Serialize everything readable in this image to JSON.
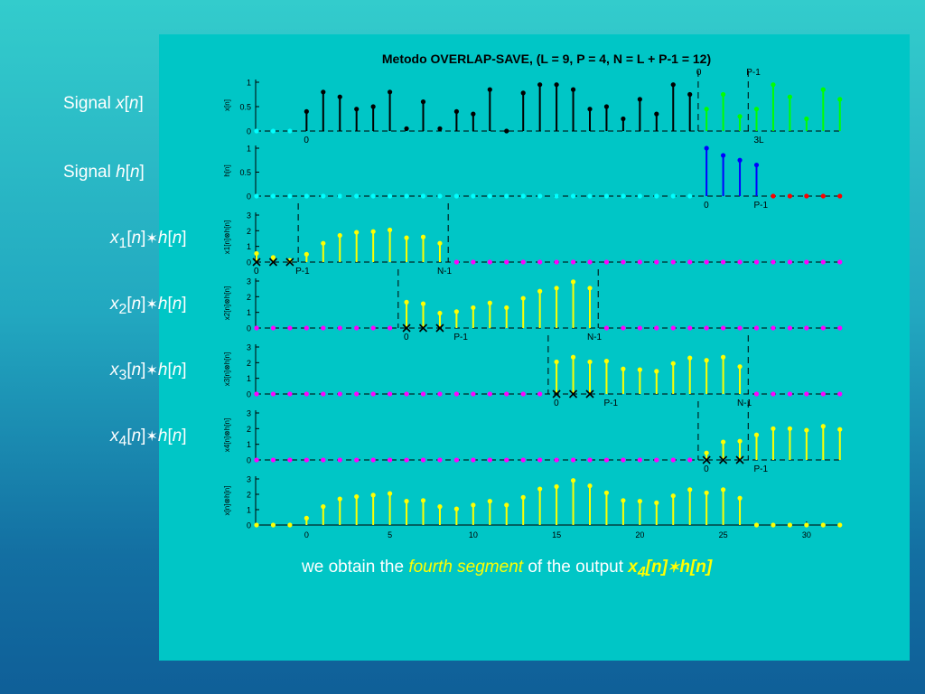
{
  "side_labels": [
    {
      "text": "Signal x[n]"
    },
    {
      "text": "Signal h[n]"
    },
    {
      "text": "x1[n]*h[n]"
    },
    {
      "text": "x2[n]*h[n]"
    },
    {
      "text": "x3[n]*h[n]"
    },
    {
      "text": "x4[n]*h[n]"
    }
  ],
  "caption": {
    "lead": "we obtain the ",
    "em": "fourth segment",
    "mid": " of the output ",
    "bold": "x4[n]*h[n]"
  },
  "colors": {
    "background_top": "#33CCCC",
    "background_bottom": "#0F5F98",
    "panel": "#00C6C6",
    "highlight_yellow": "#FFFF00",
    "stem_black": "#000000",
    "stem_green": "#00FF00",
    "stem_blue": "#0000FF",
    "zero_red": "#FF0000",
    "zero_cyan": "#00FFFF",
    "zero_magenta": "#FF00FF",
    "stem_yellow": "#FFFF00"
  },
  "chart_data": {
    "type": "stem",
    "title": "Metodo OVERLAP-SAVE, (L = 9, P = 4, N = L + P-1 = 12)",
    "x_axis": {
      "range": [
        -3,
        32
      ],
      "ticks": [
        0,
        5,
        10,
        15,
        20,
        25,
        30
      ]
    },
    "panels": [
      {
        "id": "x",
        "ylabel": "x[n]",
        "ylim": [
          0,
          1
        ],
        "yticks": [
          "0",
          "0.5",
          "1"
        ],
        "segments": [
          {
            "role": "zero",
            "color": "#00FFFF",
            "x": [
              -3,
              -2,
              -1
            ],
            "y": [
              0,
              0,
              0
            ]
          },
          {
            "role": "signal",
            "color": "#000000",
            "x": [
              0,
              1,
              2,
              3,
              4,
              5,
              6,
              7,
              8,
              9,
              10,
              11,
              12,
              13,
              14,
              15,
              16,
              17,
              18,
              19,
              20,
              21,
              22,
              23
            ],
            "y": [
              0.4,
              0.8,
              0.7,
              0.45,
              0.5,
              0.8,
              0.05,
              0.6,
              0.05,
              0.4,
              0.35,
              0.85,
              0.0,
              0.78,
              0.95,
              0.95,
              0.85,
              0.45,
              0.5,
              0.25,
              0.65,
              0.35,
              0.95,
              0.75
            ]
          },
          {
            "role": "highlight",
            "color": "#00FF00",
            "x": [
              24,
              25,
              26,
              27,
              28,
              29,
              30,
              31,
              32
            ],
            "y": [
              0.45,
              0.75,
              0.3,
              0.45,
              0.95,
              0.7,
              0.25,
              0.85,
              0.65
            ]
          }
        ],
        "markers": [
          {
            "x": 23.5,
            "label": "0",
            "label_pos": "top"
          },
          {
            "x": 26.5,
            "label": "P-1",
            "label_pos": "top"
          }
        ],
        "under_labels": [
          {
            "x": 0,
            "text": "0"
          },
          {
            "x": 27,
            "text": "3L"
          }
        ]
      },
      {
        "id": "h",
        "ylabel": "h[n]",
        "ylim": [
          0,
          1
        ],
        "yticks": [
          "0",
          "0.5",
          "1"
        ],
        "segments": [
          {
            "role": "zero",
            "color": "#00FFFF",
            "x": [
              -3,
              -2,
              -1,
              0,
              1,
              2,
              3,
              4,
              5,
              6,
              7,
              8,
              9,
              10,
              11,
              12,
              13,
              14,
              15,
              16,
              17,
              18,
              19,
              20,
              21,
              22,
              23
            ],
            "y": [
              0,
              0,
              0,
              0,
              0,
              0,
              0,
              0,
              0,
              0,
              0,
              0,
              0,
              0,
              0,
              0,
              0,
              0,
              0,
              0,
              0,
              0,
              0,
              0,
              0,
              0,
              0
            ]
          },
          {
            "role": "signal",
            "color": "#0000FF",
            "x": [
              24,
              25,
              26,
              27
            ],
            "y": [
              1.0,
              0.85,
              0.75,
              0.65
            ]
          },
          {
            "role": "zero",
            "color": "#FF0000",
            "x": [
              28,
              29,
              30,
              31,
              32
            ],
            "y": [
              0,
              0,
              0,
              0,
              0
            ]
          }
        ],
        "markers": [],
        "under_labels": [
          {
            "x": 24,
            "text": "0"
          },
          {
            "x": 27,
            "text": "P-1"
          }
        ]
      },
      {
        "id": "y1",
        "ylabel": "x1[n]⊗h[n]",
        "ylim": [
          0,
          3
        ],
        "yticks": [
          "0",
          "1",
          "2",
          "3"
        ],
        "segments": [
          {
            "role": "signal",
            "color": "#FFFF00",
            "x": [
              -3,
              -2,
              -1,
              0,
              1,
              2,
              3,
              4,
              5,
              6,
              7,
              8
            ],
            "y": [
              0.55,
              0.3,
              0.1,
              0.5,
              1.2,
              1.7,
              1.9,
              1.95,
              2.05,
              1.55,
              1.6,
              1.2
            ]
          },
          {
            "role": "zero",
            "color": "#FF00FF",
            "x": [
              9,
              10,
              11,
              12,
              13,
              14,
              15,
              16,
              17,
              18,
              19,
              20,
              21,
              22,
              23,
              24,
              25,
              26,
              27,
              28,
              29,
              30,
              31,
              32
            ],
            "y": [
              0,
              0,
              0,
              0,
              0,
              0,
              0,
              0,
              0,
              0,
              0,
              0,
              0,
              0,
              0,
              0,
              0,
              0,
              0,
              0,
              0,
              0,
              0,
              0
            ]
          }
        ],
        "crosses": [
          -3,
          -2,
          -1
        ],
        "markers": [
          {
            "x": -0.5,
            "label": "",
            "label_pos": "none"
          },
          {
            "x": 8.5,
            "label": "",
            "label_pos": "none"
          }
        ],
        "under_labels": [
          {
            "x": -3,
            "text": "0"
          },
          {
            "x": -0.5,
            "text": "P-1"
          },
          {
            "x": 8,
            "text": "N-1"
          }
        ]
      },
      {
        "id": "y2",
        "ylabel": "x2[n]⊗h[n]",
        "ylim": [
          0,
          3
        ],
        "yticks": [
          "0",
          "1",
          "2",
          "3"
        ],
        "segments": [
          {
            "role": "zero",
            "color": "#FF00FF",
            "x": [
              -3,
              -2,
              -1,
              0,
              1,
              2,
              3,
              4,
              5
            ],
            "y": [
              0,
              0,
              0,
              0,
              0,
              0,
              0,
              0,
              0
            ]
          },
          {
            "role": "signal",
            "color": "#FFFF00",
            "x": [
              6,
              7,
              8,
              9,
              10,
              11,
              12,
              13,
              14,
              15,
              16,
              17
            ],
            "y": [
              1.65,
              1.55,
              0.95,
              1.05,
              1.3,
              1.6,
              1.3,
              1.9,
              2.35,
              2.55,
              2.95,
              2.55
            ]
          },
          {
            "role": "zero",
            "color": "#FF00FF",
            "x": [
              18,
              19,
              20,
              21,
              22,
              23,
              24,
              25,
              26,
              27,
              28,
              29,
              30,
              31,
              32
            ],
            "y": [
              0,
              0,
              0,
              0,
              0,
              0,
              0,
              0,
              0,
              0,
              0,
              0,
              0,
              0,
              0
            ]
          }
        ],
        "crosses": [
          6,
          7,
          8
        ],
        "markers": [
          {
            "x": 5.5,
            "label": "",
            "label_pos": "none"
          },
          {
            "x": 17.5,
            "label": "",
            "label_pos": "none"
          }
        ],
        "under_labels": [
          {
            "x": 6,
            "text": "0"
          },
          {
            "x": 9,
            "text": "P-1"
          },
          {
            "x": 17,
            "text": "N-1"
          }
        ]
      },
      {
        "id": "y3",
        "ylabel": "x3[n]⊗h[n]",
        "ylim": [
          0,
          3
        ],
        "yticks": [
          "0",
          "1",
          "2",
          "3"
        ],
        "segments": [
          {
            "role": "zero",
            "color": "#FF00FF",
            "x": [
              -3,
              -2,
              -1,
              0,
              1,
              2,
              3,
              4,
              5,
              6,
              7,
              8,
              9,
              10,
              11,
              12,
              13,
              14
            ],
            "y": [
              0,
              0,
              0,
              0,
              0,
              0,
              0,
              0,
              0,
              0,
              0,
              0,
              0,
              0,
              0,
              0,
              0,
              0
            ]
          },
          {
            "role": "signal",
            "color": "#FFFF00",
            "x": [
              15,
              16,
              17,
              18,
              19,
              20,
              21,
              22,
              23,
              24,
              25,
              26
            ],
            "y": [
              2.05,
              2.35,
              2.05,
              2.1,
              1.6,
              1.55,
              1.45,
              1.95,
              2.3,
              2.15,
              2.35,
              1.75
            ]
          },
          {
            "role": "zero",
            "color": "#FF00FF",
            "x": [
              27,
              28,
              29,
              30,
              31,
              32
            ],
            "y": [
              0,
              0,
              0,
              0,
              0,
              0
            ]
          }
        ],
        "crosses": [
          15,
          16,
          17
        ],
        "markers": [
          {
            "x": 14.5,
            "label": "",
            "label_pos": "none"
          },
          {
            "x": 26.5,
            "label": "",
            "label_pos": "none"
          }
        ],
        "under_labels": [
          {
            "x": 15,
            "text": "0"
          },
          {
            "x": 18,
            "text": "P-1"
          },
          {
            "x": 26,
            "text": "N-1"
          }
        ]
      },
      {
        "id": "y4",
        "ylabel": "x4[n]⊗h[n]",
        "ylim": [
          0,
          3
        ],
        "yticks": [
          "0",
          "1",
          "2",
          "3"
        ],
        "segments": [
          {
            "role": "zero",
            "color": "#FF00FF",
            "x": [
              -3,
              -2,
              -1,
              0,
              1,
              2,
              3,
              4,
              5,
              6,
              7,
              8,
              9,
              10,
              11,
              12,
              13,
              14,
              15,
              16,
              17,
              18,
              19,
              20,
              21,
              22,
              23
            ],
            "y": [
              0,
              0,
              0,
              0,
              0,
              0,
              0,
              0,
              0,
              0,
              0,
              0,
              0,
              0,
              0,
              0,
              0,
              0,
              0,
              0,
              0,
              0,
              0,
              0,
              0,
              0,
              0
            ]
          },
          {
            "role": "signal",
            "color": "#FFFF00",
            "x": [
              24,
              25,
              26,
              27,
              28,
              29,
              30,
              31,
              32
            ],
            "y": [
              0.45,
              1.15,
              1.2,
              1.6,
              2.0,
              2.0,
              1.9,
              2.15,
              1.95
            ]
          }
        ],
        "crosses": [
          24,
          25,
          26
        ],
        "markers": [
          {
            "x": 23.5,
            "label": "",
            "label_pos": "none"
          },
          {
            "x": 26.5,
            "label": "",
            "label_pos": "none"
          }
        ],
        "under_labels": [
          {
            "x": 24,
            "text": "0"
          },
          {
            "x": 27,
            "text": "P-1"
          }
        ]
      },
      {
        "id": "y",
        "ylabel": "x[n]⊗h[n]",
        "ylim": [
          0,
          3
        ],
        "yticks": [
          "0",
          "1",
          "2",
          "3"
        ],
        "segments": [
          {
            "role": "zero",
            "color": "#FFFF00",
            "x": [
              -3,
              -2,
              -1
            ],
            "y": [
              0,
              0,
              0
            ]
          },
          {
            "role": "signal",
            "color": "#FFFF00",
            "x": [
              0,
              1,
              2,
              3,
              4,
              5,
              6,
              7,
              8,
              9,
              10,
              11,
              12,
              13,
              14,
              15,
              16,
              17,
              18,
              19,
              20,
              21,
              22,
              23,
              24,
              25,
              26
            ],
            "y": [
              0.45,
              1.2,
              1.7,
              1.85,
              1.95,
              2.05,
              1.55,
              1.6,
              1.2,
              1.05,
              1.3,
              1.55,
              1.3,
              1.8,
              2.35,
              2.5,
              2.9,
              2.55,
              2.1,
              1.6,
              1.55,
              1.45,
              1.9,
              2.3,
              2.1,
              2.3,
              1.75
            ]
          },
          {
            "role": "zero",
            "color": "#FFFF00",
            "x": [
              27,
              28,
              29,
              30,
              31,
              32
            ],
            "y": [
              0,
              0,
              0,
              0,
              0,
              0
            ]
          }
        ],
        "markers": [],
        "under_labels": []
      }
    ]
  }
}
